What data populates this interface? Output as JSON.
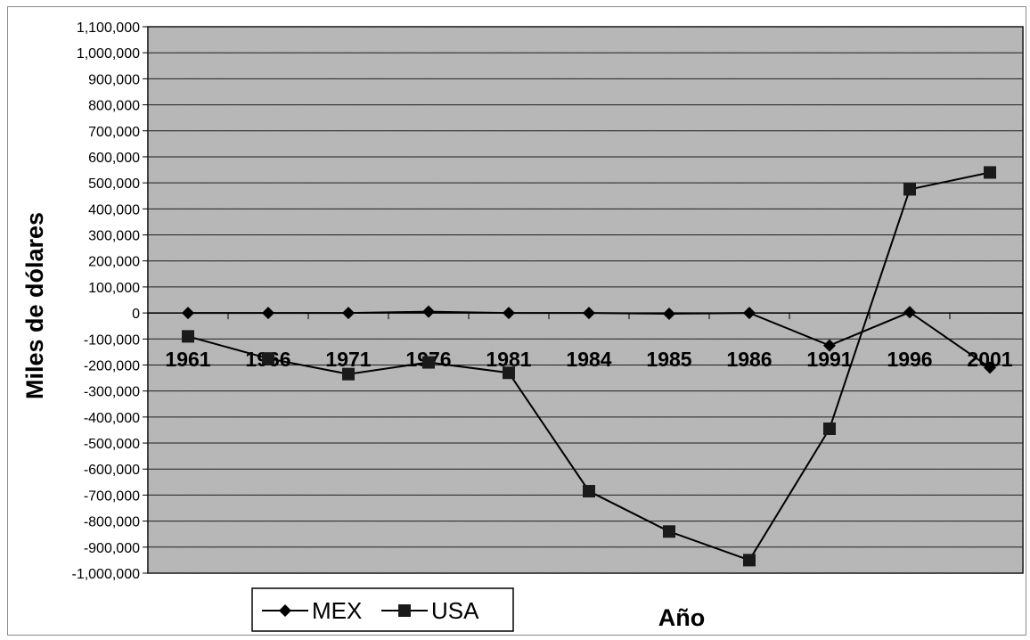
{
  "chart_data": {
    "type": "line",
    "title": "",
    "xlabel": "Año",
    "ylabel": "Miles de dólares",
    "categories": [
      "1961",
      "1966",
      "1971",
      "1976",
      "1981",
      "1984",
      "1985",
      "1986",
      "1991",
      "1996",
      "2001"
    ],
    "series": [
      {
        "name": "MEX",
        "values": [
          0,
          0,
          0,
          5000,
          0,
          0,
          -3000,
          0,
          -125000,
          3000,
          -210000
        ],
        "marker": "diamond",
        "color": "#000000"
      },
      {
        "name": "USA",
        "values": [
          -90000,
          -175000,
          -235000,
          -190000,
          -230000,
          -685000,
          -840000,
          -950000,
          -445000,
          475000,
          540000
        ],
        "marker": "square",
        "color": "#1a1a1a"
      }
    ],
    "ylim": [
      -1000000,
      1100000
    ],
    "ytick_step": 100000,
    "yticks": [
      "1,100,000",
      "1,000,000",
      "900,000",
      "800,000",
      "700,000",
      "600,000",
      "500,000",
      "400,000",
      "300,000",
      "200,000",
      "100,000",
      "0",
      "-100,000",
      "-200,000",
      "-300,000",
      "-400,000",
      "-500,000",
      "-600,000",
      "-700,000",
      "-800,000",
      "-900,000",
      "-1,000,000"
    ],
    "grid": true,
    "legend_position": "bottom-left",
    "plot_background": "#b4b4b4"
  }
}
